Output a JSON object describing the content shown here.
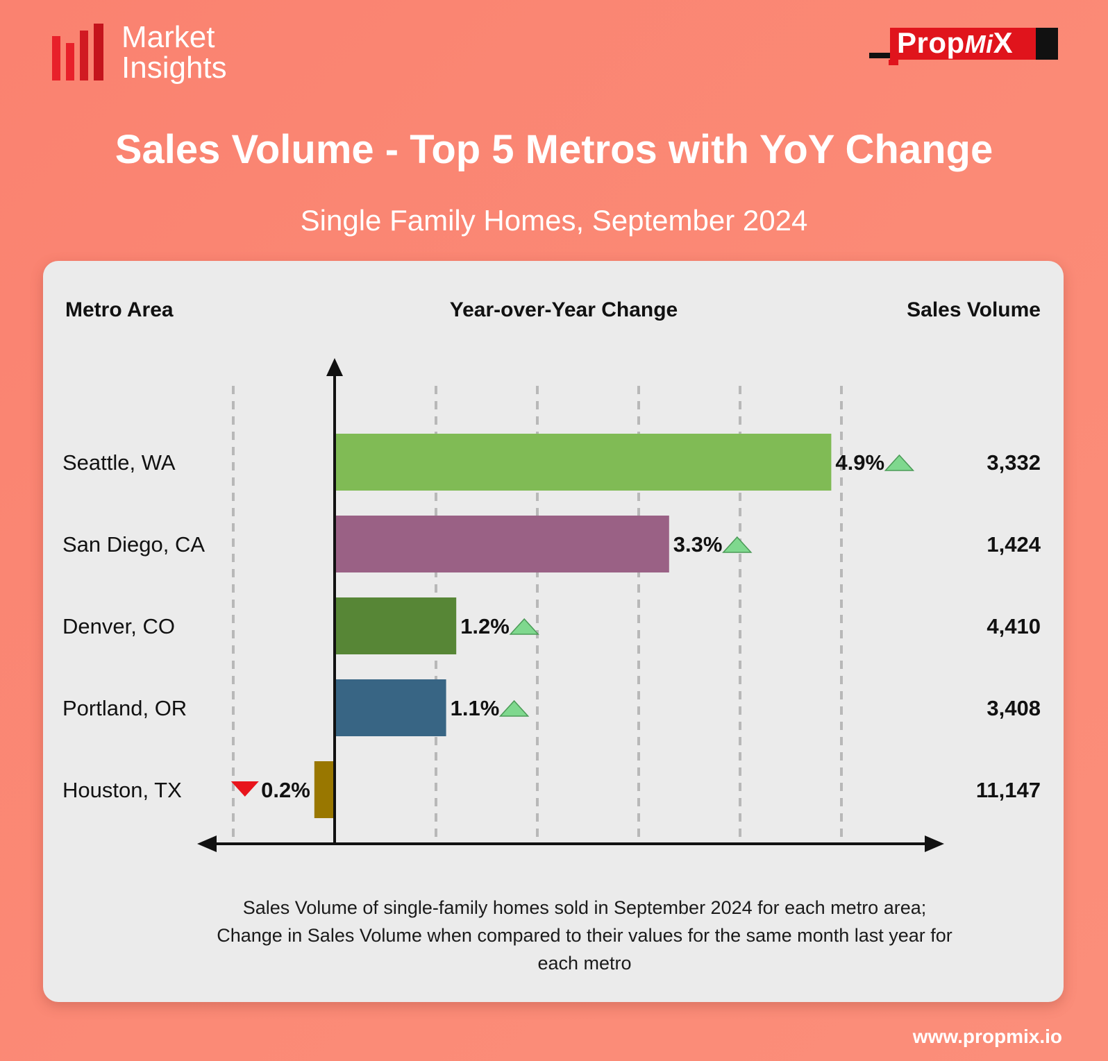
{
  "header": {
    "logo_line1": "Market",
    "logo_line2": "Insights",
    "brand_main": "Prop",
    "brand_mi": "Mi",
    "brand_x": "X",
    "title": "Sales Volume - Top 5 Metros with YoY Change",
    "subtitle": "Single Family Homes, September 2024"
  },
  "columns": {
    "metro": "Metro Area",
    "yoy": "Year-over-Year Change",
    "volume": "Sales Volume"
  },
  "colors": {
    "up_arrow": "#7fd88e",
    "down_arrow": "#e8141c",
    "axis": "#111111"
  },
  "chart_data": {
    "type": "bar",
    "orientation": "horizontal",
    "categories": [
      "Seattle, WA",
      "San Diego, CA",
      "Denver, CO",
      "Portland, OR",
      "Houston, TX"
    ],
    "yoy_change_pct": [
      4.9,
      3.3,
      1.2,
      1.1,
      -0.2
    ],
    "yoy_labels": [
      "4.9%",
      "3.3%",
      "1.2%",
      "1.1%",
      "0.2%"
    ],
    "sales_volume": [
      3332,
      1424,
      4410,
      3408,
      11147
    ],
    "sales_volume_labels": [
      "3,332",
      "1,424",
      "4,410",
      "3,408",
      "11,147"
    ],
    "bar_colors": [
      "#80bb55",
      "#9a6185",
      "#578636",
      "#386584",
      "#997700"
    ],
    "title": "Year-over-Year Change",
    "xlabel": "",
    "ylabel": "Metro Area",
    "xlim": [
      -1.0,
      6.0
    ],
    "grid": true
  },
  "footer": {
    "caption_line1": "Sales Volume of single-family homes sold in September 2024 for each metro area;",
    "caption_line2": "Change in Sales Volume when compared to their values for the same month last year for",
    "caption_line3": "each metro",
    "website": "www.propmix.io"
  }
}
